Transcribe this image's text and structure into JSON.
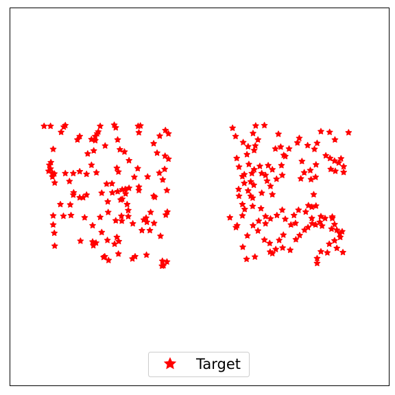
{
  "chart_data": {
    "type": "scatter",
    "title": "",
    "xlabel": "",
    "ylabel": "",
    "xlim": [
      0,
      100
    ],
    "ylim": [
      0,
      100
    ],
    "grid": false,
    "axis_ticks": false,
    "legend_placement": "bottom-center",
    "series": [
      {
        "name": "Target",
        "marker": "star",
        "color": "#ff0000",
        "points": [
          [
            9.0,
            68.7
          ],
          [
            10.7,
            68.7
          ],
          [
            14.6,
            68.9
          ],
          [
            14.2,
            68.5
          ],
          [
            13.5,
            67.1
          ],
          [
            11.4,
            62.6
          ],
          [
            10.8,
            59.1
          ],
          [
            10.4,
            58.4
          ],
          [
            10.7,
            57.4
          ],
          [
            11.2,
            56.3
          ],
          [
            11.7,
            56.1
          ],
          [
            11.2,
            55.3
          ],
          [
            10.2,
            56.8
          ],
          [
            11.8,
            53.7
          ],
          [
            14.6,
            56.2
          ],
          [
            15.7,
            54.1
          ],
          [
            16.7,
            56.2
          ],
          [
            18.4,
            56.7
          ],
          [
            20.5,
            61.4
          ],
          [
            21.5,
            58.4
          ],
          [
            18.4,
            66.0
          ],
          [
            17.8,
            65.1
          ],
          [
            21.5,
            65.2
          ],
          [
            22.5,
            64.9
          ],
          [
            22.5,
            66.0
          ],
          [
            23.0,
            66.7
          ],
          [
            23.3,
            67.2
          ],
          [
            23.8,
            68.7
          ],
          [
            25.1,
            63.5
          ],
          [
            22.1,
            62.2
          ],
          [
            20.2,
            56.0
          ],
          [
            22.8,
            56.4
          ],
          [
            27.5,
            69.0
          ],
          [
            27.9,
            68.3
          ],
          [
            28.4,
            65.1
          ],
          [
            29.0,
            62.5
          ],
          [
            28.2,
            57.6
          ],
          [
            28.6,
            56.6
          ],
          [
            26.9,
            53.5
          ],
          [
            25.5,
            53.4
          ],
          [
            24.2,
            51.0
          ],
          [
            20.2,
            50.5
          ],
          [
            19.3,
            49.8
          ],
          [
            18.4,
            49.8
          ],
          [
            16.8,
            51.1
          ],
          [
            13.3,
            48.0
          ],
          [
            15.9,
            47.9
          ],
          [
            16.7,
            50.5
          ],
          [
            11.4,
            45.0
          ],
          [
            14.1,
            44.9
          ],
          [
            16.1,
            45.1
          ],
          [
            11.4,
            42.6
          ],
          [
            11.7,
            40.4
          ],
          [
            11.8,
            37.0
          ],
          [
            18.6,
            38.3
          ],
          [
            21.8,
            38.1
          ],
          [
            22.7,
            37.8
          ],
          [
            21.8,
            42.4
          ],
          [
            24.2,
            40.6
          ],
          [
            25.7,
            38.5
          ],
          [
            27.6,
            37.5
          ],
          [
            28.2,
            39.3
          ],
          [
            25.9,
            45.9
          ],
          [
            25.8,
            48.7
          ],
          [
            27.0,
            51.1
          ],
          [
            29.2,
            49.2
          ],
          [
            28.4,
            51.4
          ],
          [
            29.6,
            51.9
          ],
          [
            30.4,
            52.0
          ],
          [
            32.8,
            55.2
          ],
          [
            34.0,
            52.6
          ],
          [
            36.3,
            55.3
          ],
          [
            39.4,
            56.3
          ],
          [
            40.9,
            60.8
          ],
          [
            38.8,
            61.6
          ],
          [
            37.9,
            64.1
          ],
          [
            39.5,
            66.1
          ],
          [
            41.0,
            67.6
          ],
          [
            41.8,
            66.7
          ],
          [
            33.8,
            68.7
          ],
          [
            34.4,
            68.8
          ],
          [
            34.0,
            67.0
          ],
          [
            30.2,
            61.9
          ],
          [
            31.4,
            59.6
          ],
          [
            33.7,
            57.5
          ],
          [
            30.5,
            50.8
          ],
          [
            31.2,
            46.4
          ],
          [
            29.6,
            49.4
          ],
          [
            31.4,
            52.3
          ],
          [
            31.2,
            44.8
          ],
          [
            29.5,
            43.6
          ],
          [
            30.9,
            48.0
          ],
          [
            35.3,
            43.9
          ],
          [
            35.9,
            44.4
          ],
          [
            37.1,
            45.9
          ],
          [
            37.9,
            50.2
          ],
          [
            40.3,
            54.5
          ],
          [
            41.4,
            51.7
          ],
          [
            41.1,
            45.2
          ],
          [
            41.5,
            46.0
          ],
          [
            38.2,
            49.9
          ],
          [
            36.1,
            43.3
          ],
          [
            34.0,
            51.7
          ],
          [
            28.7,
            38.2
          ],
          [
            32.3,
            33.6
          ],
          [
            29.4,
            44.9
          ],
          [
            24.7,
            34.0
          ],
          [
            25.0,
            34.2
          ],
          [
            26.0,
            33.2
          ],
          [
            28.6,
            34.9
          ],
          [
            32.4,
            42.9
          ],
          [
            39.7,
            39.6
          ],
          [
            36.0,
            34.6
          ],
          [
            34.8,
            41.1
          ],
          [
            41.4,
            32.8
          ],
          [
            40.2,
            33.0
          ],
          [
            40.5,
            31.8
          ],
          [
            40.1,
            31.7
          ],
          [
            36.9,
            41.1
          ],
          [
            33.0,
            34.2
          ],
          [
            27.9,
            43.7
          ],
          [
            23.8,
            44.6
          ],
          [
            22.0,
            37.1
          ],
          [
            19.7,
            44.5
          ],
          [
            41.8,
            60.0
          ],
          [
            40.8,
            57.3
          ],
          [
            38.0,
            43.0
          ],
          [
            58.7,
            68.2
          ],
          [
            59.5,
            66.0
          ],
          [
            64.8,
            68.8
          ],
          [
            64.1,
            66.8
          ],
          [
            67.1,
            68.9
          ],
          [
            65.4,
            65.1
          ],
          [
            62.8,
            63.3
          ],
          [
            61.5,
            64.4
          ],
          [
            64.7,
            63.5
          ],
          [
            64.4,
            62.3
          ],
          [
            62.5,
            61.2
          ],
          [
            59.8,
            60.2
          ],
          [
            60.4,
            57.9
          ],
          [
            63.0,
            58.6
          ],
          [
            61.3,
            55.4
          ],
          [
            63.5,
            54.0
          ],
          [
            64.3,
            53.1
          ],
          [
            63.8,
            56.2
          ],
          [
            64.4,
            57.2
          ],
          [
            65.9,
            58.1
          ],
          [
            66.4,
            56.2
          ],
          [
            68.1,
            58.3
          ],
          [
            67.4,
            55.7
          ],
          [
            69.2,
            57.2
          ],
          [
            70.0,
            62.7
          ],
          [
            70.8,
            66.6
          ],
          [
            72.2,
            61.0
          ],
          [
            71.4,
            63.2
          ],
          [
            73.6,
            62.7
          ],
          [
            75.8,
            64.3
          ],
          [
            76.3,
            65.5
          ],
          [
            78.5,
            63.6
          ],
          [
            80.3,
            62.6
          ],
          [
            81.0,
            64.2
          ],
          [
            82.0,
            67.3
          ],
          [
            84.3,
            67.1
          ],
          [
            85.7,
            65.1
          ],
          [
            83.3,
            60.9
          ],
          [
            84.4,
            60.2
          ],
          [
            85.6,
            59.5
          ],
          [
            85.8,
            56.8
          ],
          [
            87.3,
            60.1
          ],
          [
            86.7,
            59.0
          ],
          [
            84.6,
            57.3
          ],
          [
            88.0,
            56.5
          ],
          [
            89.3,
            67.0
          ],
          [
            88.0,
            58.0
          ],
          [
            80.7,
            58.5
          ],
          [
            79.2,
            57.0
          ],
          [
            77.0,
            59.4
          ],
          [
            77.6,
            56.4
          ],
          [
            76.7,
            54.8
          ],
          [
            79.4,
            54.6
          ],
          [
            80.6,
            55.2
          ],
          [
            72.6,
            60.7
          ],
          [
            71.6,
            58.3
          ],
          [
            71.8,
            55.7
          ],
          [
            70.3,
            54.7
          ],
          [
            69.2,
            50.6
          ],
          [
            68.7,
            52.8
          ],
          [
            67.8,
            54.2
          ],
          [
            66.4,
            51.0
          ],
          [
            64.0,
            49.7
          ],
          [
            63.5,
            50.2
          ],
          [
            62.8,
            51.6
          ],
          [
            61.8,
            55.9
          ],
          [
            61.8,
            53.6
          ],
          [
            60.3,
            52.0
          ],
          [
            60.4,
            50.2
          ],
          [
            61.3,
            48.0
          ],
          [
            61.3,
            45.0
          ],
          [
            61.9,
            46.7
          ],
          [
            64.0,
            47.5
          ],
          [
            66.2,
            46.9
          ],
          [
            65.6,
            43.6
          ],
          [
            67.4,
            44.8
          ],
          [
            68.7,
            44.2
          ],
          [
            70.4,
            45.1
          ],
          [
            71.8,
            46.5
          ],
          [
            72.6,
            44.1
          ],
          [
            74.1,
            42.6
          ],
          [
            74.9,
            45.1
          ],
          [
            75.3,
            43.0
          ],
          [
            76.1,
            46.5
          ],
          [
            78.0,
            46.0
          ],
          [
            78.7,
            47.7
          ],
          [
            79.6,
            47.3
          ],
          [
            80.7,
            47.6
          ],
          [
            80.1,
            50.6
          ],
          [
            79.6,
            44.3
          ],
          [
            79.7,
            42.9
          ],
          [
            80.6,
            42.6
          ],
          [
            81.7,
            43.3
          ],
          [
            82.3,
            42.3
          ],
          [
            82.0,
            44.8
          ],
          [
            83.1,
            44.3
          ],
          [
            85.0,
            44.3
          ],
          [
            84.8,
            41.5
          ],
          [
            86.2,
            41.2
          ],
          [
            85.6,
            38.4
          ],
          [
            87.1,
            39.3
          ],
          [
            87.0,
            40.3
          ],
          [
            87.6,
            40.8
          ],
          [
            85.6,
            42.7
          ],
          [
            84.2,
            37.5
          ],
          [
            82.0,
            35.5
          ],
          [
            81.0,
            33.7
          ],
          [
            81.0,
            32.4
          ],
          [
            83.7,
            35.2
          ],
          [
            86.2,
            36.4
          ],
          [
            87.8,
            35.3
          ],
          [
            85.0,
            44.7
          ],
          [
            78.6,
            41.9
          ],
          [
            77.7,
            41.2
          ],
          [
            76.4,
            39.8
          ],
          [
            75.4,
            38.7
          ],
          [
            72.1,
            39.9
          ],
          [
            73.9,
            35.9
          ],
          [
            71.9,
            36.5
          ],
          [
            70.1,
            36.1
          ],
          [
            67.1,
            38.6
          ],
          [
            69.2,
            35.0
          ],
          [
            68.6,
            35.4
          ],
          [
            68.5,
            37.7
          ],
          [
            64.6,
            34.1
          ],
          [
            62.4,
            33.5
          ],
          [
            59.6,
            41.9
          ],
          [
            59.9,
            42.4
          ],
          [
            58.0,
            44.5
          ],
          [
            62.6,
            39.7
          ],
          [
            64.1,
            42.4
          ],
          [
            65.4,
            41.0
          ],
          [
            67.4,
            42.9
          ],
          [
            71.0,
            38.5
          ],
          [
            61.4,
            36.7
          ]
        ]
      }
    ]
  },
  "legend": {
    "label": "Target",
    "marker": "star-icon"
  }
}
